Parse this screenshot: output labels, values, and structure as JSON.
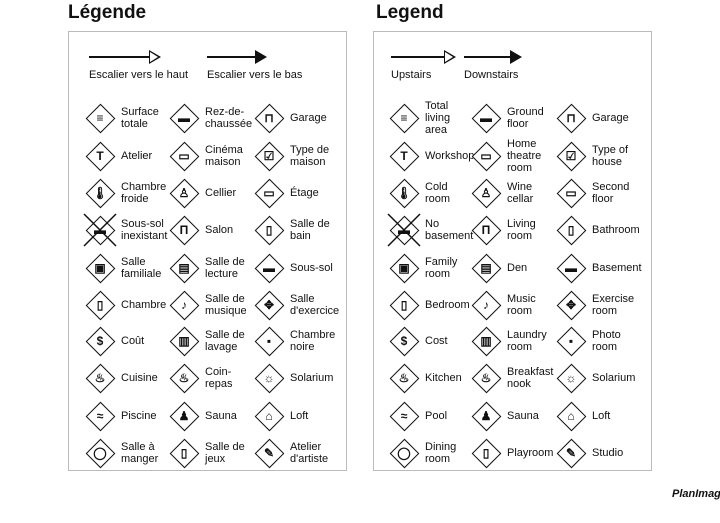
{
  "panels": [
    {
      "title": "Légende",
      "stairs_up": "Escalier vers le haut",
      "stairs_down": "Escalier vers le bas",
      "items": [
        [
          "Surface\ntotale",
          "Rez-de-\nchaussée",
          "Garage"
        ],
        [
          "Atelier",
          "Cinéma\nmaison",
          "Type de\nmaison"
        ],
        [
          "Chambre\nfroide",
          "Cellier",
          "Étage"
        ],
        [
          "Sous-sol\ninexistant",
          "Salon",
          "Salle de\nbain"
        ],
        [
          "Salle\nfamiliale",
          "Salle de\nlecture",
          "Sous-sol"
        ],
        [
          "Chambre",
          "Salle de\nmusique",
          "Salle\nd'exercice"
        ],
        [
          "Coût",
          "Salle de\nlavage",
          "Chambre\nnoire"
        ],
        [
          "Cuisine",
          "Coin-\nrepas",
          "Solarium"
        ],
        [
          "Piscine",
          "Sauna",
          "Loft"
        ],
        [
          "Salle à\nmanger",
          "Salle de\njeux",
          "Atelier\nd'artiste"
        ]
      ]
    },
    {
      "title": "Legend",
      "stairs_up": "Upstairs",
      "stairs_down": "Downstairs",
      "items": [
        [
          "Total\nliving\narea",
          "Ground\nfloor",
          "Garage"
        ],
        [
          "Workshop",
          "Home\ntheatre\nroom",
          "Type of\nhouse"
        ],
        [
          "Cold\nroom",
          "Wine\ncellar",
          "Second\nfloor"
        ],
        [
          "No\nbasement",
          "Living\nroom",
          "Bathroom"
        ],
        [
          "Family\nroom",
          "Den",
          "Basement"
        ],
        [
          "Bedroom",
          "Music\nroom",
          "Exercise\nroom"
        ],
        [
          "Cost",
          "Laundry\nroom",
          "Photo\nroom"
        ],
        [
          "Kitchen",
          "Breakfast\nnook",
          "Solarium"
        ],
        [
          "Pool",
          "Sauna",
          "Loft"
        ],
        [
          "Dining\nroom",
          "Playroom",
          "Studio"
        ]
      ]
    }
  ],
  "icons": [
    [
      "total-area",
      "ground-floor",
      "garage"
    ],
    [
      "workshop",
      "home-theatre",
      "house-type"
    ],
    [
      "cold-room",
      "wine-cellar",
      "second-floor"
    ],
    [
      "no-basement",
      "living-room",
      "bathroom"
    ],
    [
      "family-room",
      "den",
      "basement"
    ],
    [
      "bedroom",
      "music-room",
      "exercise-room"
    ],
    [
      "cost",
      "laundry-room",
      "photo-room"
    ],
    [
      "kitchen",
      "breakfast-nook",
      "solarium"
    ],
    [
      "pool",
      "sauna",
      "loft"
    ],
    [
      "dining-room",
      "playroom",
      "studio"
    ]
  ],
  "logo": "PlanImage"
}
